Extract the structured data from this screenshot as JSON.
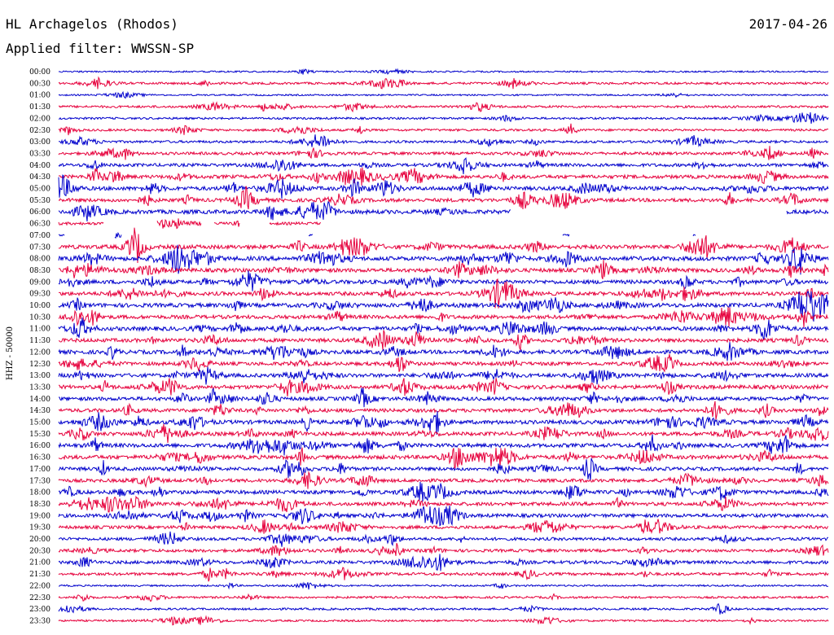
{
  "header": {
    "station": "HL Archagelos (Rhodos)",
    "filter": "Applied filter: WWSSN-SP",
    "date": "2017-04-26"
  },
  "axis": {
    "label": "HHZ - 50000"
  },
  "traces": {
    "colors": [
      "#0000cc",
      "#e6003c"
    ],
    "rows": [
      {
        "time": "00:00",
        "activity": 0.15
      },
      {
        "time": "00:30",
        "activity": 0.35
      },
      {
        "time": "01:00",
        "activity": 0.15
      },
      {
        "time": "01:30",
        "activity": 0.35
      },
      {
        "time": "02:00",
        "activity": 0.3
      },
      {
        "time": "02:30",
        "activity": 0.35
      },
      {
        "time": "03:00",
        "activity": 0.4
      },
      {
        "time": "03:30",
        "activity": 0.5
      },
      {
        "time": "04:00",
        "activity": 0.6
      },
      {
        "time": "04:30",
        "activity": 0.7
      },
      {
        "time": "05:00",
        "activity": 0.8
      },
      {
        "time": "05:30",
        "activity": 0.7
      },
      {
        "time": "06:00",
        "activity": 0.85
      },
      {
        "time": "06:30",
        "activity": 0.5
      },
      {
        "time": "07:00",
        "activity": 0.2
      },
      {
        "time": "07:30",
        "activity": 0.85
      },
      {
        "time": "08:00",
        "activity": 0.9
      },
      {
        "time": "08:30",
        "activity": 0.8
      },
      {
        "time": "09:00",
        "activity": 0.8
      },
      {
        "time": "09:30",
        "activity": 0.75
      },
      {
        "time": "10:00",
        "activity": 0.85
      },
      {
        "time": "10:30",
        "activity": 0.75
      },
      {
        "time": "11:00",
        "activity": 0.85
      },
      {
        "time": "11:30",
        "activity": 0.75
      },
      {
        "time": "12:00",
        "activity": 0.8
      },
      {
        "time": "12:30",
        "activity": 0.7
      },
      {
        "time": "13:00",
        "activity": 0.75
      },
      {
        "time": "13:30",
        "activity": 0.8
      },
      {
        "time": "14:00",
        "activity": 0.75
      },
      {
        "time": "14:30",
        "activity": 0.7
      },
      {
        "time": "15:00",
        "activity": 0.8
      },
      {
        "time": "15:30",
        "activity": 0.75
      },
      {
        "time": "16:00",
        "activity": 0.8
      },
      {
        "time": "16:30",
        "activity": 0.8
      },
      {
        "time": "17:00",
        "activity": 0.7
      },
      {
        "time": "17:30",
        "activity": 0.65
      },
      {
        "time": "18:00",
        "activity": 0.75
      },
      {
        "time": "18:30",
        "activity": 0.7
      },
      {
        "time": "19:00",
        "activity": 0.7
      },
      {
        "time": "19:30",
        "activity": 0.6
      },
      {
        "time": "20:00",
        "activity": 0.55
      },
      {
        "time": "20:30",
        "activity": 0.55
      },
      {
        "time": "21:00",
        "activity": 0.6
      },
      {
        "time": "21:30",
        "activity": 0.5
      },
      {
        "time": "22:00",
        "activity": 0.2
      },
      {
        "time": "22:30",
        "activity": 0.3
      },
      {
        "time": "23:00",
        "activity": 0.3
      },
      {
        "time": "23:30",
        "activity": 0.25
      }
    ]
  }
}
